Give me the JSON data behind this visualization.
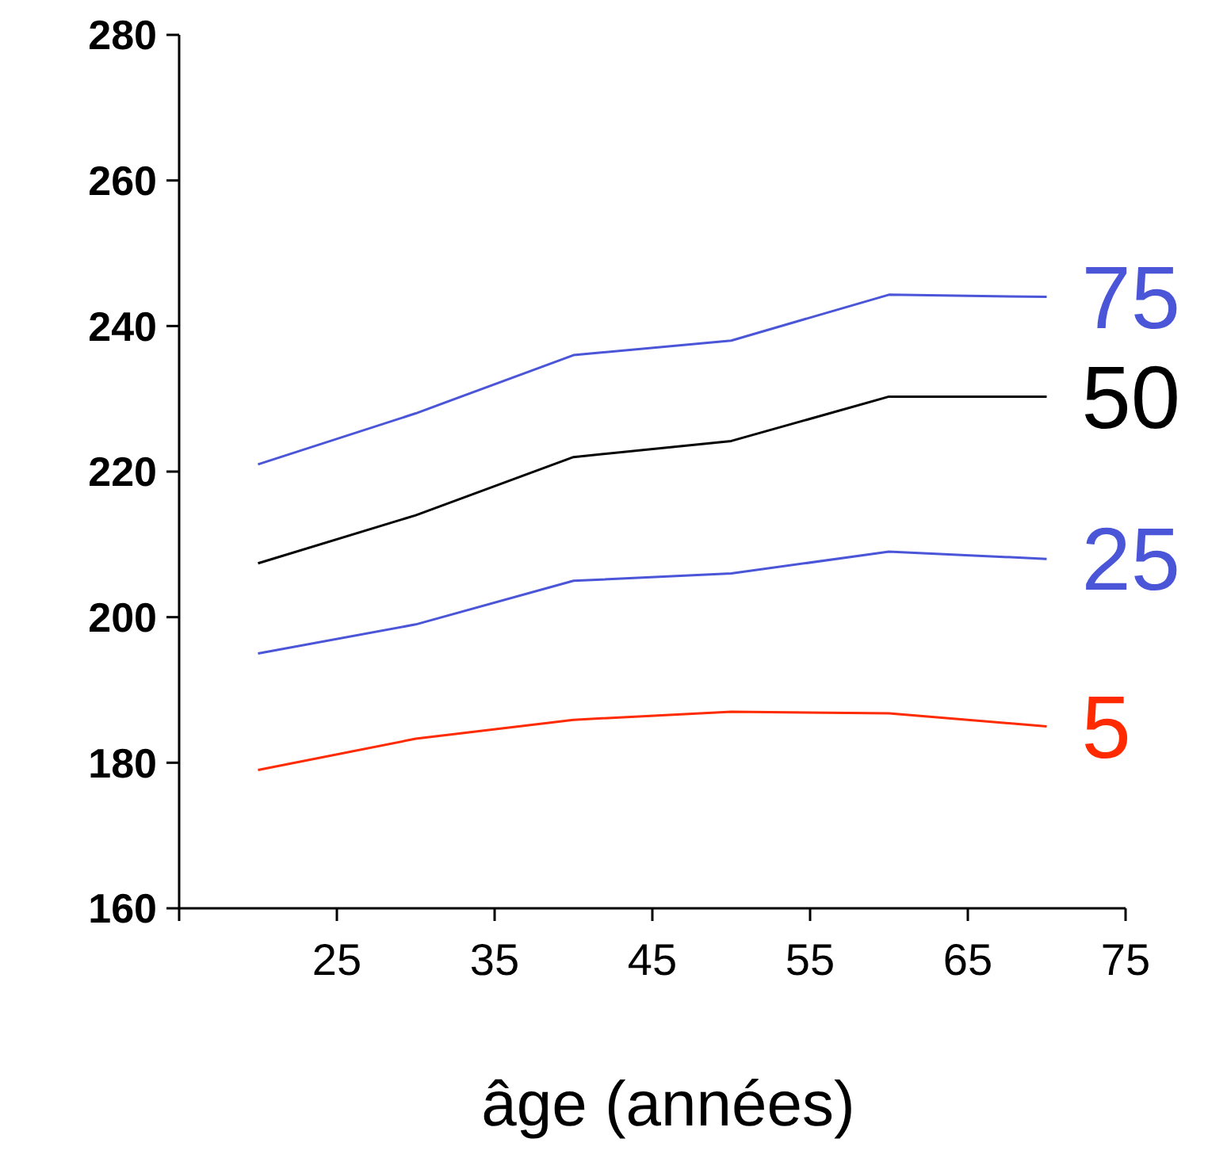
{
  "chart_data": {
    "type": "line",
    "xlabel": "âge (années)",
    "x": [
      20,
      30,
      40,
      50,
      60,
      70
    ],
    "xlim": [
      15,
      75
    ],
    "xticks": [
      {
        "value": 15,
        "label": null
      },
      25,
      35,
      45,
      55,
      65,
      75
    ],
    "ylim": [
      160,
      280
    ],
    "yticks": [
      160,
      180,
      200,
      220,
      240,
      260,
      280
    ],
    "grid": false,
    "marker": "none",
    "line_style": "solid",
    "series": [
      {
        "name": "75",
        "color": "#4a55d8",
        "values": [
          221,
          228,
          236,
          238,
          244.3,
          244
        ]
      },
      {
        "name": "50",
        "color": "#000000",
        "values": [
          207.4,
          214,
          222,
          224.2,
          230.3,
          230.3
        ]
      },
      {
        "name": "25",
        "color": "#4a55d8",
        "values": [
          195,
          199,
          205,
          206,
          209,
          208
        ]
      },
      {
        "name": "5",
        "color": "#ff2a00",
        "values": [
          179,
          183.3,
          185.9,
          187,
          186.8,
          185
        ]
      }
    ]
  }
}
